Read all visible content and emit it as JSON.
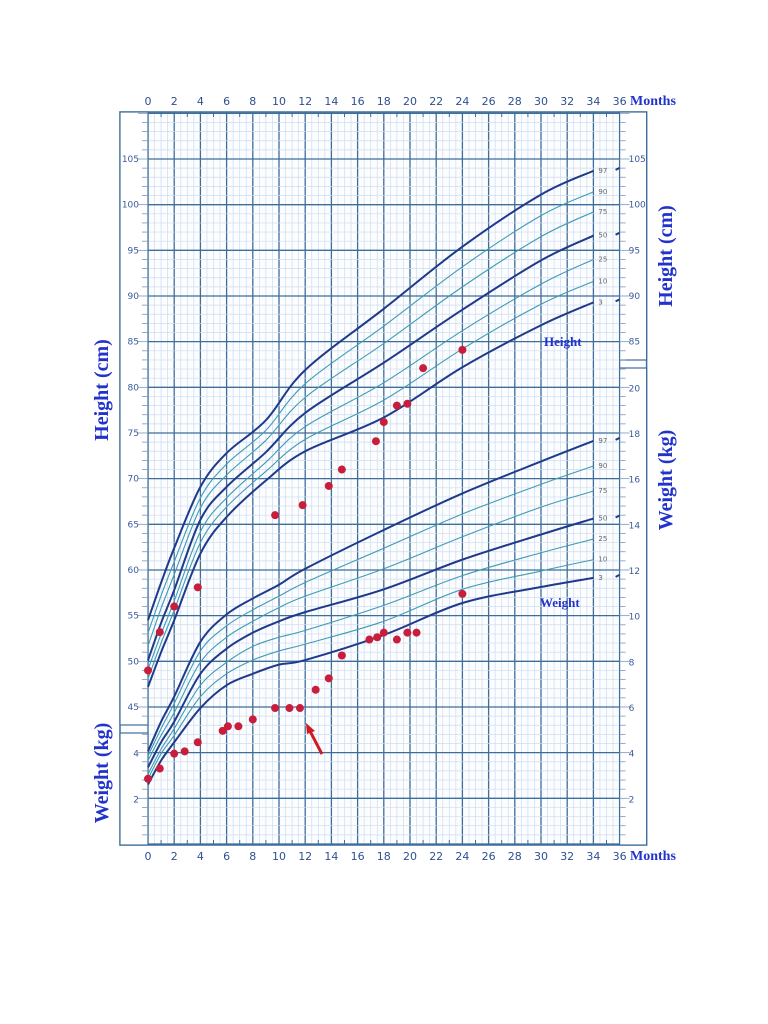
{
  "colors": {
    "major_curve": "#1f3a8a",
    "minor_curve": "#3f9bb4",
    "grid_major": "#3f6d9a",
    "grid_minor": "#cfdcee",
    "patient_dot": "#c81e3c",
    "arrow": "#d01a22",
    "title": "#2233cc"
  },
  "chart_data": {
    "type": "line",
    "x_label": "Months",
    "xlim": [
      0,
      36
    ],
    "x_ticks": [
      0,
      2,
      4,
      6,
      8,
      10,
      12,
      14,
      16,
      18,
      20,
      22,
      24,
      26,
      28,
      30,
      32,
      34,
      36
    ],
    "grid": true,
    "height": {
      "title": "Height (cm)",
      "inner_label": "Height",
      "ylim": [
        30,
        110
      ],
      "left_ticks": [
        105,
        100,
        95,
        90,
        85,
        80,
        75,
        70,
        65,
        60,
        55,
        50,
        45
      ],
      "right_ticks": [
        105,
        100,
        95,
        90,
        85
      ],
      "percentile_months": [
        0,
        1,
        2,
        4,
        6,
        9,
        12,
        18,
        24,
        30,
        34
      ],
      "percentiles": [
        {
          "name": "97",
          "major": true,
          "values": [
            54.5,
            58.6,
            62.4,
            69.1,
            72.8,
            76.4,
            81.9,
            88.6,
            95.4,
            101.1,
            103.7
          ]
        },
        {
          "name": "90",
          "major": false,
          "values": [
            53.1,
            57.2,
            60.9,
            67.9,
            71.6,
            75.3,
            80.4,
            86.7,
            93.2,
            98.8,
            101.4
          ]
        },
        {
          "name": "75",
          "major": false,
          "values": [
            51.7,
            55.8,
            59.5,
            66.8,
            70.4,
            74.2,
            78.9,
            84.8,
            91.0,
            96.5,
            99.2
          ]
        },
        {
          "name": "50",
          "major": true,
          "values": [
            50.1,
            54.2,
            57.8,
            65.5,
            69.1,
            72.9,
            77.2,
            82.7,
            88.5,
            93.9,
            96.6
          ]
        },
        {
          "name": "25",
          "major": false,
          "values": [
            49.1,
            53.0,
            56.6,
            64.2,
            67.9,
            71.8,
            75.7,
            80.5,
            86.2,
            91.3,
            94.0
          ]
        },
        {
          "name": "10",
          "major": false,
          "values": [
            48.1,
            52.0,
            55.6,
            63.0,
            66.9,
            70.8,
            74.3,
            78.6,
            84.2,
            89.1,
            91.6
          ]
        },
        {
          "name": "3",
          "major": true,
          "values": [
            47.2,
            51.0,
            54.5,
            61.8,
            65.8,
            69.8,
            73.0,
            76.7,
            82.2,
            86.8,
            89.3
          ]
        }
      ],
      "patient": {
        "months": [
          0,
          0.9,
          2,
          3.8,
          9.7,
          11.8,
          13.8,
          14.8,
          17.4,
          18,
          19,
          19.8,
          21,
          24
        ],
        "values": [
          49,
          53.2,
          56,
          58.1,
          66,
          67.1,
          69.2,
          71,
          74.1,
          76.2,
          78,
          78.2,
          82.1,
          84.1
        ]
      }
    },
    "weight": {
      "title": "Weight (kg)",
      "inner_label": "Weight",
      "ylim": [
        0,
        32
      ],
      "left_ticks": [
        4,
        2
      ],
      "right_ticks": [
        20,
        18,
        16,
        14,
        12,
        10,
        8,
        6,
        4,
        2
      ],
      "percentile_months": [
        0,
        1,
        2,
        4,
        6,
        8,
        10,
        12,
        18,
        24,
        30,
        34
      ],
      "percentiles": [
        {
          "name": "97",
          "major": true,
          "values": [
            4.1,
            5.4,
            6.5,
            8.9,
            10.1,
            10.8,
            11.4,
            12.1,
            13.8,
            15.4,
            16.8,
            17.7
          ]
        },
        {
          "name": "90",
          "major": false,
          "values": [
            3.9,
            5.1,
            6.2,
            8.5,
            9.6,
            10.3,
            10.9,
            11.5,
            13.0,
            14.5,
            15.8,
            16.6
          ]
        },
        {
          "name": "75",
          "major": false,
          "values": [
            3.7,
            4.8,
            5.8,
            8.0,
            9.1,
            9.8,
            10.4,
            10.9,
            12.1,
            13.5,
            14.8,
            15.5
          ]
        },
        {
          "name": "50",
          "major": true,
          "values": [
            3.4,
            4.5,
            5.4,
            7.5,
            8.6,
            9.3,
            9.8,
            10.2,
            11.2,
            12.5,
            13.6,
            14.3
          ]
        },
        {
          "name": "25",
          "major": false,
          "values": [
            3.1,
            4.2,
            5.1,
            7.0,
            8.0,
            8.7,
            9.1,
            9.4,
            10.5,
            11.8,
            12.8,
            13.4
          ]
        },
        {
          "name": "10",
          "major": false,
          "values": [
            2.9,
            4.0,
            4.8,
            6.5,
            7.5,
            8.1,
            8.5,
            8.8,
            9.8,
            11.2,
            12.0,
            12.5
          ]
        },
        {
          "name": "3",
          "major": true,
          "values": [
            2.65,
            3.7,
            4.5,
            6.0,
            7.0,
            7.5,
            7.9,
            8.1,
            9.2,
            10.6,
            11.3,
            11.7
          ]
        }
      ],
      "patient": {
        "months": [
          0,
          0.9,
          2,
          2.8,
          3.8,
          5.7,
          6.1,
          6.9,
          8,
          9.7,
          10.8,
          11.6,
          12.8,
          13.8,
          14.8,
          16.9,
          17.5,
          18,
          19,
          19.8,
          20.5,
          24
        ],
        "values": [
          2.9,
          3.35,
          4.0,
          4.1,
          4.5,
          5.0,
          5.2,
          5.2,
          5.5,
          6.0,
          6.0,
          6.0,
          6.8,
          7.3,
          8.3,
          9.0,
          9.1,
          9.3,
          9.0,
          9.3,
          9.3,
          11.0
        ]
      }
    },
    "annotation_arrow": {
      "target_month": 11.6,
      "target_weight": 6.0
    }
  }
}
